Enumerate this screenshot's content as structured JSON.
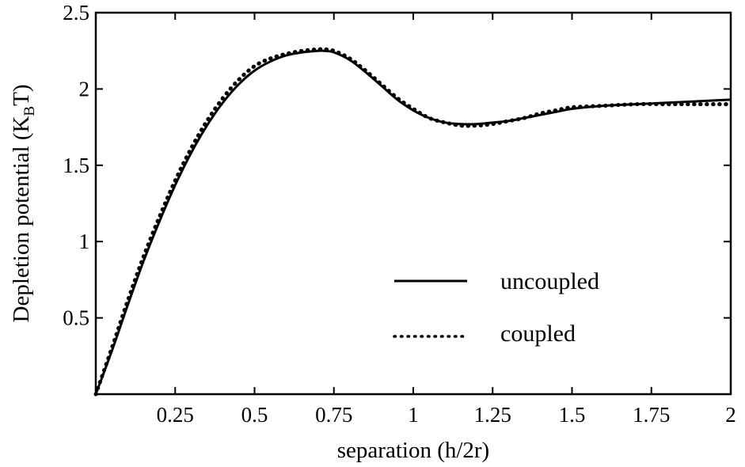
{
  "chart_data": {
    "type": "line",
    "xlabel": "separation (h/2r)",
    "ylabel_parts": {
      "main": "Depletion potential (K",
      "subscript": "B",
      "suffix": "T)"
    },
    "xlim": [
      0,
      2
    ],
    "ylim": [
      0,
      2.5
    ],
    "x_ticks": [
      0.25,
      0.5,
      0.75,
      1,
      1.25,
      1.5,
      1.75,
      2
    ],
    "x_tick_labels": [
      "0.25",
      "0.5",
      "0.75",
      "1",
      "1.25",
      "1.5",
      "1.75",
      "2"
    ],
    "y_ticks": [
      0.5,
      1,
      1.5,
      2,
      2.5
    ],
    "y_tick_labels": [
      "0.5",
      "1",
      "1.5",
      "2",
      "2.5"
    ],
    "grid": false,
    "legend_position": "center-right",
    "series": [
      {
        "name": "uncoupled",
        "style": "solid",
        "color": "#000000",
        "x": [
          0,
          0.05,
          0.1,
          0.15,
          0.2,
          0.25,
          0.3,
          0.35,
          0.4,
          0.45,
          0.5,
          0.55,
          0.6,
          0.65,
          0.7,
          0.72,
          0.75,
          0.8,
          0.85,
          0.9,
          0.95,
          1.0,
          1.05,
          1.1,
          1.15,
          1.2,
          1.25,
          1.3,
          1.35,
          1.4,
          1.45,
          1.5,
          1.6,
          1.7,
          1.8,
          1.9,
          2.0
        ],
        "y": [
          0.0,
          0.28,
          0.58,
          0.87,
          1.13,
          1.37,
          1.58,
          1.76,
          1.91,
          2.03,
          2.12,
          2.18,
          2.22,
          2.24,
          2.25,
          2.25,
          2.24,
          2.19,
          2.11,
          2.02,
          1.93,
          1.86,
          1.81,
          1.78,
          1.77,
          1.77,
          1.78,
          1.79,
          1.81,
          1.83,
          1.85,
          1.87,
          1.89,
          1.9,
          1.91,
          1.92,
          1.93
        ]
      },
      {
        "name": "coupled",
        "style": "dotted",
        "color": "#000000",
        "x": [
          0,
          0.05,
          0.1,
          0.15,
          0.2,
          0.25,
          0.3,
          0.35,
          0.4,
          0.45,
          0.5,
          0.55,
          0.6,
          0.65,
          0.7,
          0.72,
          0.75,
          0.8,
          0.85,
          0.9,
          0.95,
          1.0,
          1.05,
          1.1,
          1.15,
          1.2,
          1.25,
          1.3,
          1.35,
          1.4,
          1.45,
          1.5,
          1.6,
          1.7,
          1.8,
          1.9,
          2.0
        ],
        "y": [
          0.0,
          0.3,
          0.61,
          0.9,
          1.16,
          1.4,
          1.61,
          1.79,
          1.94,
          2.06,
          2.15,
          2.2,
          2.23,
          2.25,
          2.26,
          2.26,
          2.25,
          2.2,
          2.12,
          2.03,
          1.94,
          1.87,
          1.81,
          1.78,
          1.76,
          1.76,
          1.77,
          1.79,
          1.81,
          1.84,
          1.86,
          1.88,
          1.89,
          1.9,
          1.9,
          1.9,
          1.9
        ]
      }
    ]
  }
}
